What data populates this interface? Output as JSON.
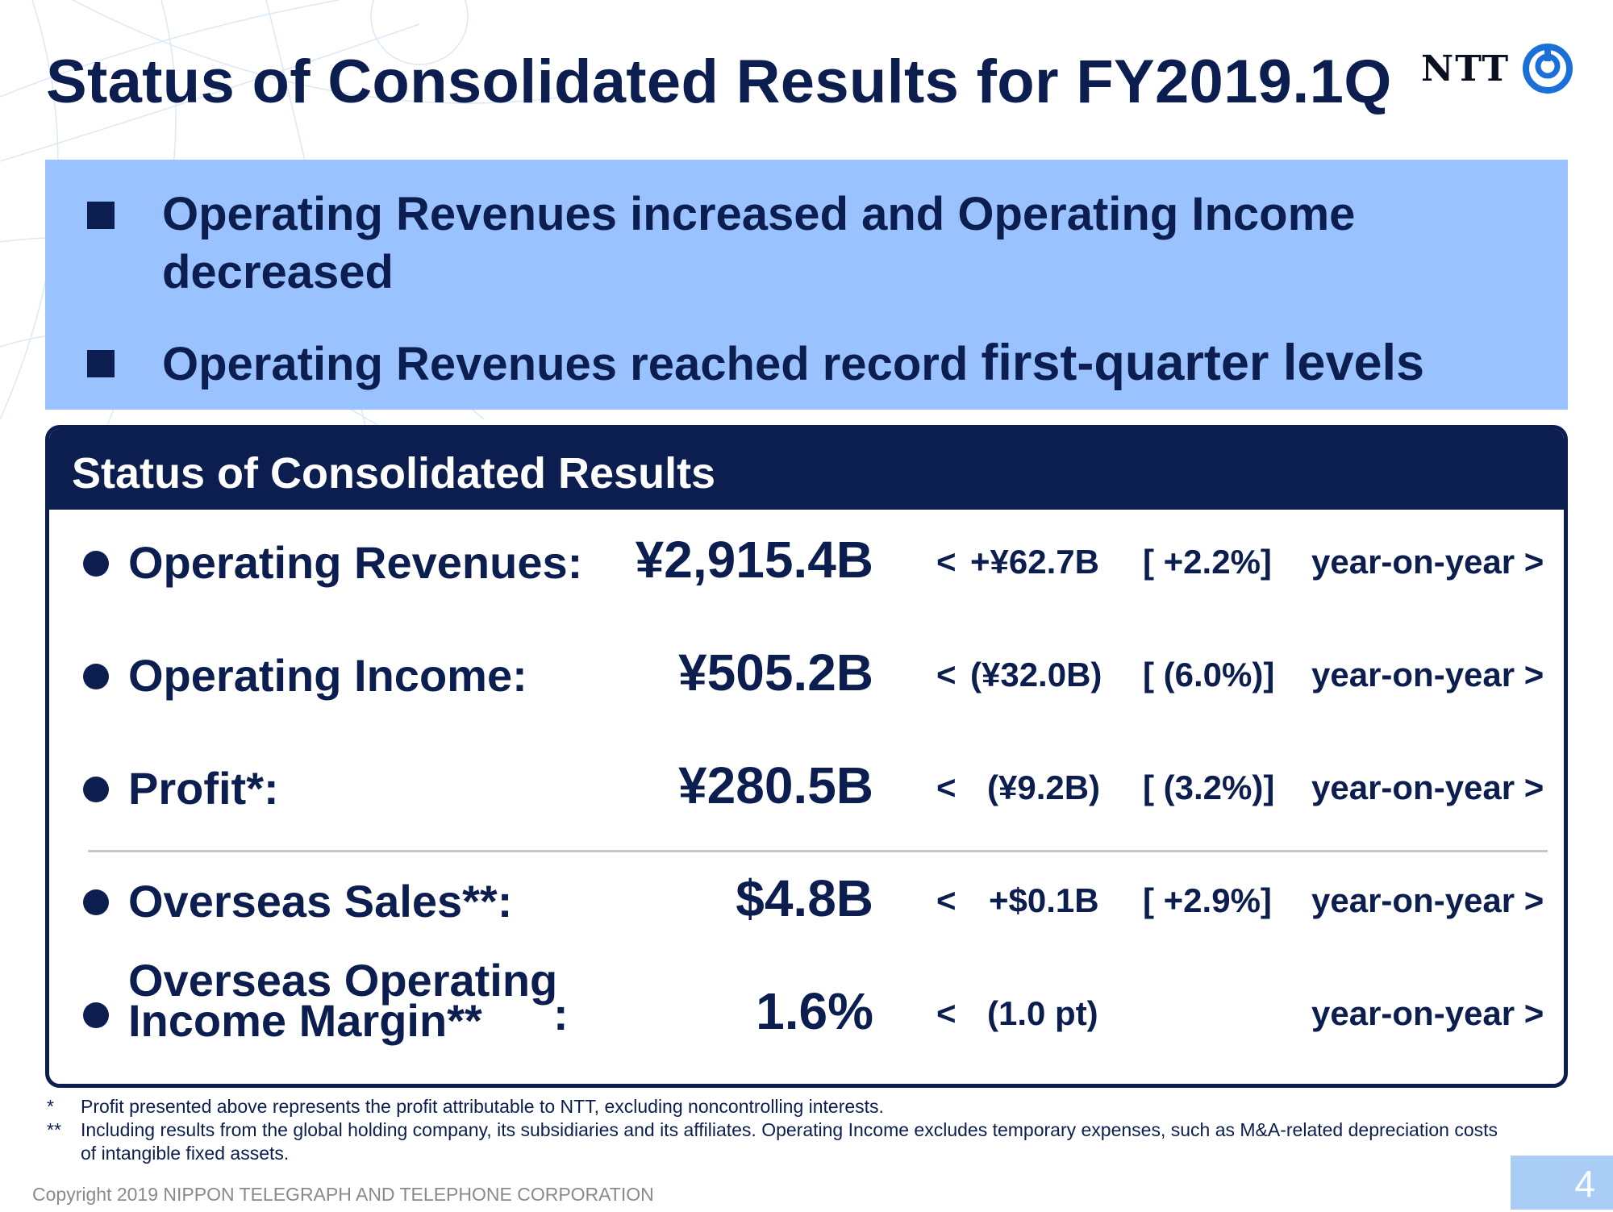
{
  "title": "Status of Consolidated Results for FY2019.1Q",
  "logo": {
    "text": "NTT",
    "icon": "ntt-logo-icon",
    "color": "#1a6fd8"
  },
  "highlights": [
    {
      "text": "Operating Revenues increased and Operating Income decreased"
    },
    {
      "text_main": "Operating Revenues reached record ",
      "text_emph": "first-quarter levels"
    }
  ],
  "panel": {
    "header": "Status of Consolidated Results",
    "rows": [
      {
        "label": "Operating Revenues:",
        "value": "¥2,915.4B",
        "open": "<",
        "change": "+¥62.7B",
        "pct": "[ +2.2%]",
        "yoy": "year-on-year >"
      },
      {
        "label": "Operating Income:",
        "value": "¥505.2B",
        "open": "<",
        "change": "(¥32.0B)",
        "pct": "[ (6.0%)]",
        "yoy": "year-on-year >"
      },
      {
        "label": "Profit*:",
        "value": "¥280.5B",
        "open": "<",
        "change": "(¥9.2B)",
        "pct": "[ (3.2%)]",
        "yoy": "year-on-year >"
      },
      {
        "label": "Overseas Sales**:",
        "value": "$4.8B",
        "open": "<",
        "change": "+$0.1B",
        "pct": "[ +2.9%]",
        "yoy": "year-on-year >"
      },
      {
        "label_line1": "Overseas Operating",
        "label_line2": "Income Margin**",
        "colon": ":",
        "value": "1.6%",
        "open": "<",
        "change": "(1.0 pt)",
        "yoy": "year-on-year >"
      }
    ]
  },
  "footnotes": [
    {
      "mark": "*",
      "text": "Profit presented above represents the profit attributable to NTT, excluding noncontrolling interests."
    },
    {
      "mark": "**",
      "text": "Including results from the global holding company, its subsidiaries and its affiliates. Operating Income excludes temporary expenses, such as M&A-related depreciation costs of intangible fixed assets."
    }
  ],
  "copyright": "Copyright 2019 NIPPON TELEGRAPH AND TELEPHONE CORPORATION",
  "page_number": "4",
  "colors": {
    "navy": "#0b1e4f",
    "highlight_bg": "#99c2ff",
    "page_box": "#a9cdf5"
  }
}
